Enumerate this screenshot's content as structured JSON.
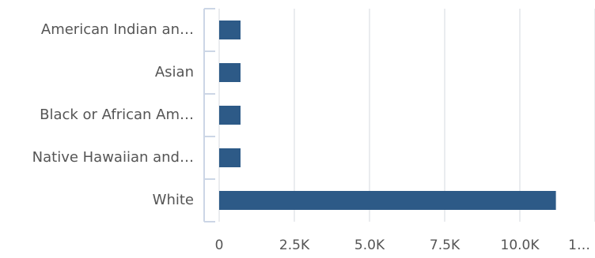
{
  "chart_data": {
    "type": "bar",
    "orientation": "horizontal",
    "categories": [
      "American Indian an…",
      "Asian",
      "Black or African Am…",
      "Native Hawaiian and…",
      "White"
    ],
    "values": [
      710,
      710,
      710,
      710,
      11200
    ],
    "color": "#2d5a87",
    "xlim": [
      0,
      12500
    ],
    "xticks": [
      0,
      {
        "value": 2500,
        "label": "2.5K"
      },
      {
        "value": 5000,
        "label": "5.0K"
      },
      {
        "value": 7500,
        "label": "7.5K"
      },
      {
        "value": 10000,
        "label": "10.0K"
      },
      {
        "value": 12500,
        "label": "1…"
      }
    ],
    "grid": true
  }
}
